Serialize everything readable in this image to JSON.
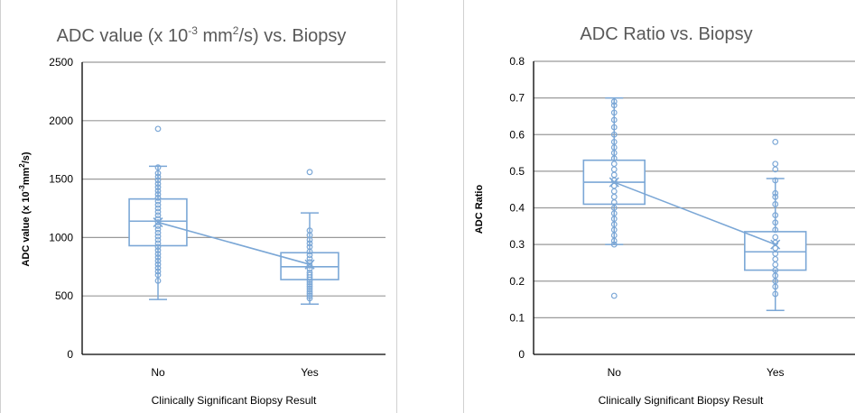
{
  "chart_data": [
    {
      "type": "box",
      "title_main": "ADC value (x 10",
      "title_exp1": "-3",
      "title_mid": " mm",
      "title_exp2": "2",
      "title_end": "/s) vs. Biopsy",
      "ylabel_main": "ADC value (x 10",
      "ylabel_exp1": "-3",
      "ylabel_mid": "mm",
      "ylabel_exp2": "2",
      "ylabel_end": "/s)",
      "xlabel": "Clinically Significant Biopsy Result",
      "categories": [
        "No",
        "Yes"
      ],
      "ylim": [
        0,
        2500
      ],
      "yticks": [
        0,
        500,
        1000,
        1500,
        2000,
        2500
      ],
      "grid": true,
      "color": "#7ba7d6",
      "boxes": [
        {
          "category": "No",
          "min": 470,
          "q1": 930,
          "median": 1140,
          "q3": 1330,
          "max": 1610,
          "mean": 1130,
          "points": [
            1930,
            1600,
            1550,
            1520,
            1490,
            1460,
            1430,
            1400,
            1370,
            1340,
            1310,
            1280,
            1250,
            1220,
            1190,
            1160,
            1130,
            1100,
            1070,
            1040,
            1010,
            980,
            950,
            920,
            890,
            860,
            830,
            800,
            770,
            740,
            710,
            680,
            630
          ]
        },
        {
          "category": "Yes",
          "min": 430,
          "q1": 640,
          "median": 750,
          "q3": 870,
          "max": 1210,
          "mean": 770,
          "points": [
            1560,
            1060,
            1020,
            980,
            950,
            920,
            880,
            850,
            820,
            790,
            760,
            730,
            700,
            680,
            660,
            640,
            620,
            600,
            580,
            560,
            540,
            520,
            500,
            480
          ]
        }
      ]
    },
    {
      "type": "box",
      "title": "ADC Ratio vs. Biopsy",
      "ylabel": "ADC  Ratio",
      "xlabel": "Clinically Significant Biopsy Result",
      "categories": [
        "No",
        "Yes"
      ],
      "ylim": [
        0,
        0.8
      ],
      "yticks": [
        0,
        0.1,
        0.2,
        0.3,
        0.4,
        0.5,
        0.6,
        0.7,
        0.8
      ],
      "grid": true,
      "color": "#7ba7d6",
      "boxes": [
        {
          "category": "No",
          "min": 0.3,
          "q1": 0.41,
          "median": 0.47,
          "q3": 0.53,
          "max": 0.7,
          "mean": 0.47,
          "points": [
            0.69,
            0.68,
            0.66,
            0.64,
            0.62,
            0.6,
            0.58,
            0.565,
            0.55,
            0.535,
            0.52,
            0.505,
            0.49,
            0.475,
            0.46,
            0.445,
            0.43,
            0.415,
            0.4,
            0.385,
            0.37,
            0.355,
            0.34,
            0.325,
            0.31,
            0.3,
            0.16
          ]
        },
        {
          "category": "Yes",
          "min": 0.12,
          "q1": 0.23,
          "median": 0.28,
          "q3": 0.335,
          "max": 0.48,
          "mean": 0.3,
          "points": [
            0.58,
            0.52,
            0.505,
            0.475,
            0.44,
            0.43,
            0.41,
            0.38,
            0.36,
            0.34,
            0.32,
            0.305,
            0.29,
            0.275,
            0.26,
            0.245,
            0.23,
            0.215,
            0.2,
            0.185,
            0.165
          ]
        }
      ]
    }
  ]
}
